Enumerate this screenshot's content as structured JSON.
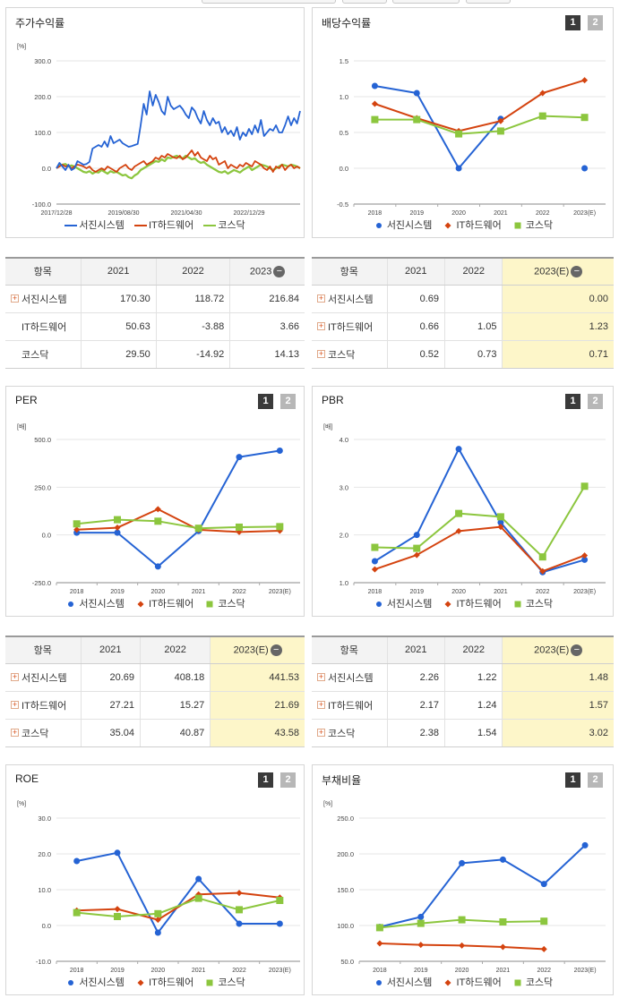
{
  "legend_names": [
    "서진시스템",
    "IT하드웨어",
    "코스닥"
  ],
  "colors": {
    "s1": "#2563d4",
    "s2": "#d4430f",
    "s3": "#8cc63e"
  },
  "toggle": {
    "one": "1",
    "two": "2"
  },
  "returns": {
    "title": "주가수익률",
    "unit": "[%]",
    "chart_data": {
      "type": "line",
      "x_ticks": [
        "2017/12/28",
        "2019/08/30",
        "2021/04/30",
        "2022/12/29"
      ],
      "y_ticks": [
        "300.0",
        "200.0",
        "100.0",
        "0.0",
        "-100.0"
      ],
      "ylim": [
        -100,
        300
      ],
      "series": [
        {
          "name": "서진시스템",
          "values": [
            0,
            15,
            5,
            -5,
            10,
            -5,
            0,
            20,
            15,
            10,
            12,
            18,
            55,
            60,
            65,
            60,
            75,
            60,
            90,
            70,
            75,
            80,
            70,
            65,
            60,
            62,
            65,
            68,
            120,
            180,
            150,
            215,
            175,
            205,
            185,
            160,
            150,
            200,
            175,
            165,
            170,
            175,
            165,
            150,
            140,
            170,
            160,
            140,
            125,
            160,
            135,
            120,
            140,
            125,
            130,
            100,
            115,
            95,
            105,
            90,
            115,
            80,
            100,
            90,
            110,
            95,
            120,
            100,
            135,
            90,
            100,
            110,
            105,
            120,
            100,
            100,
            120,
            145,
            120,
            140,
            125,
            160
          ]
        },
        {
          "name": "IT하드웨어",
          "values": [
            0,
            5,
            10,
            5,
            8,
            0,
            5,
            10,
            8,
            5,
            0,
            5,
            -5,
            -10,
            -5,
            0,
            -5,
            5,
            0,
            -5,
            -10,
            0,
            5,
            10,
            0,
            -5,
            5,
            10,
            15,
            20,
            10,
            15,
            20,
            30,
            25,
            35,
            30,
            40,
            35,
            30,
            28,
            35,
            25,
            30,
            40,
            50,
            35,
            45,
            30,
            25,
            20,
            35,
            25,
            30,
            10,
            15,
            20,
            0,
            10,
            5,
            0,
            10,
            5,
            15,
            10,
            5,
            20,
            15,
            10,
            0,
            -5,
            5,
            -10,
            5,
            0,
            10,
            -5,
            5,
            10,
            0,
            5,
            0
          ]
        },
        {
          "name": "코스닥",
          "values": [
            0,
            8,
            10,
            12,
            5,
            8,
            5,
            0,
            -5,
            -10,
            -12,
            -8,
            -15,
            -10,
            -12,
            -5,
            -10,
            -15,
            -8,
            -12,
            -10,
            -15,
            -20,
            -18,
            -25,
            -28,
            -20,
            -15,
            -5,
            0,
            5,
            10,
            15,
            20,
            18,
            25,
            20,
            30,
            28,
            32,
            35,
            30,
            28,
            35,
            30,
            25,
            28,
            20,
            15,
            18,
            10,
            5,
            0,
            -5,
            -10,
            -12,
            -8,
            -15,
            -10,
            -5,
            -8,
            -12,
            -5,
            0,
            5,
            -5,
            0,
            5,
            10,
            8,
            5,
            0,
            -5,
            0,
            5,
            10,
            8,
            5,
            10,
            8,
            5,
            0
          ]
        }
      ]
    }
  },
  "dividend": {
    "title": "배당수익률",
    "chart_data": {
      "type": "line",
      "categories": [
        "2018",
        "2019",
        "2020",
        "2021",
        "2022",
        "2023(E)"
      ],
      "y_ticks": [
        "1.5",
        "1.0",
        "0.5",
        "0.0",
        "-0.5"
      ],
      "ylim": [
        -0.5,
        1.5
      ],
      "series": [
        {
          "name": "서진시스템",
          "values": [
            1.15,
            1.05,
            0.0,
            0.69,
            null,
            0.0
          ],
          "connect": [
            true,
            true,
            true,
            false,
            false
          ]
        },
        {
          "name": "IT하드웨어",
          "values": [
            0.9,
            0.7,
            0.52,
            0.66,
            1.05,
            1.23
          ]
        },
        {
          "name": "코스닥",
          "values": [
            0.68,
            0.68,
            0.48,
            0.52,
            0.73,
            0.71
          ]
        }
      ]
    }
  },
  "per": {
    "title": "PER",
    "unit": "[배]",
    "chart_data": {
      "type": "line",
      "categories": [
        "2018",
        "2019",
        "2020",
        "2021",
        "2022",
        "2023(E)"
      ],
      "y_ticks": [
        "500.0",
        "250.0",
        "0.0",
        "-250.0"
      ],
      "ylim": [
        -250,
        500
      ],
      "series": [
        {
          "name": "서진시스템",
          "values": [
            12,
            12,
            -165,
            20.69,
            408.18,
            441.53
          ]
        },
        {
          "name": "IT하드웨어",
          "values": [
            28,
            38,
            135,
            27.21,
            15.27,
            21.69
          ]
        },
        {
          "name": "코스닥",
          "values": [
            58,
            80,
            72,
            35.04,
            40.87,
            43.58
          ]
        }
      ]
    }
  },
  "pbr": {
    "title": "PBR",
    "unit": "[배]",
    "chart_data": {
      "type": "line",
      "categories": [
        "2018",
        "2019",
        "2020",
        "2021",
        "2022",
        "2023(E)"
      ],
      "y_ticks": [
        "4.0",
        "3.0",
        "2.0",
        "1.0"
      ],
      "ylim": [
        1,
        4
      ],
      "series": [
        {
          "name": "서진시스템",
          "values": [
            1.45,
            2.0,
            3.8,
            2.26,
            1.22,
            1.48
          ]
        },
        {
          "name": "IT하드웨어",
          "values": [
            1.28,
            1.58,
            2.08,
            2.17,
            1.24,
            1.57
          ]
        },
        {
          "name": "코스닥",
          "values": [
            1.74,
            1.72,
            2.45,
            2.38,
            1.54,
            3.02
          ]
        }
      ]
    }
  },
  "roe": {
    "title": "ROE",
    "unit": "[%]",
    "chart_data": {
      "type": "line",
      "categories": [
        "2018",
        "2019",
        "2020",
        "2021",
        "2022",
        "2023(E)"
      ],
      "y_ticks": [
        "30.0",
        "20.0",
        "10.0",
        "0.0",
        "-10.0"
      ],
      "ylim": [
        -10,
        30
      ],
      "series": [
        {
          "name": "서진시스템",
          "values": [
            18.0,
            20.3,
            -2.0,
            13.0,
            0.5,
            0.5
          ]
        },
        {
          "name": "IT하드웨어",
          "values": [
            4.2,
            4.6,
            1.6,
            8.7,
            9.1,
            7.8
          ]
        },
        {
          "name": "코스닥",
          "values": [
            3.6,
            2.5,
            3.3,
            7.6,
            4.4,
            7.0
          ]
        }
      ]
    }
  },
  "debt": {
    "title": "부채비율",
    "unit": "[%]",
    "chart_data": {
      "type": "line",
      "categories": [
        "2018",
        "2019",
        "2020",
        "2021",
        "2022",
        "2023(E)"
      ],
      "y_ticks": [
        "250.0",
        "200.0",
        "150.0",
        "100.0",
        "50.0"
      ],
      "ylim": [
        50,
        250
      ],
      "series": [
        {
          "name": "서진시스템",
          "values": [
            98,
            112,
            187,
            192,
            158,
            212
          ]
        },
        {
          "name": "IT하드웨어",
          "values": [
            75,
            73,
            72,
            70,
            67,
            null
          ]
        },
        {
          "name": "코스닥",
          "values": [
            97,
            103,
            108,
            105,
            106,
            null
          ]
        }
      ]
    }
  },
  "table_returns": {
    "header": [
      "항목",
      "2021",
      "2022",
      "2023"
    ],
    "rows": [
      {
        "name": "서진시스템",
        "values": [
          "170.30",
          "118.72",
          "216.84"
        ],
        "plus": true
      },
      {
        "name": "IT하드웨어",
        "values": [
          "50.63",
          "-3.88",
          "3.66"
        ],
        "plus": false
      },
      {
        "name": "코스닥",
        "values": [
          "29.50",
          "-14.92",
          "14.13"
        ],
        "plus": false
      }
    ]
  },
  "table_dividend": {
    "header": [
      "항목",
      "2021",
      "2022",
      "2023(E)"
    ],
    "rows": [
      {
        "name": "서진시스템",
        "values": [
          "0.69",
          "",
          "0.00"
        ],
        "plus": true
      },
      {
        "name": "IT하드웨어",
        "values": [
          "0.66",
          "1.05",
          "1.23"
        ],
        "plus": true
      },
      {
        "name": "코스닥",
        "values": [
          "0.52",
          "0.73",
          "0.71"
        ],
        "plus": true
      }
    ]
  },
  "table_per": {
    "header": [
      "항목",
      "2021",
      "2022",
      "2023(E)"
    ],
    "rows": [
      {
        "name": "서진시스템",
        "values": [
          "20.69",
          "408.18",
          "441.53"
        ],
        "plus": true
      },
      {
        "name": "IT하드웨어",
        "values": [
          "27.21",
          "15.27",
          "21.69"
        ],
        "plus": true
      },
      {
        "name": "코스닥",
        "values": [
          "35.04",
          "40.87",
          "43.58"
        ],
        "plus": true
      }
    ]
  },
  "table_pbr": {
    "header": [
      "항목",
      "2021",
      "2022",
      "2023(E)"
    ],
    "rows": [
      {
        "name": "서진시스템",
        "values": [
          "2.26",
          "1.22",
          "1.48"
        ],
        "plus": true
      },
      {
        "name": "IT하드웨어",
        "values": [
          "2.17",
          "1.24",
          "1.57"
        ],
        "plus": true
      },
      {
        "name": "코스닥",
        "values": [
          "2.38",
          "1.54",
          "3.02"
        ],
        "plus": true
      }
    ]
  }
}
